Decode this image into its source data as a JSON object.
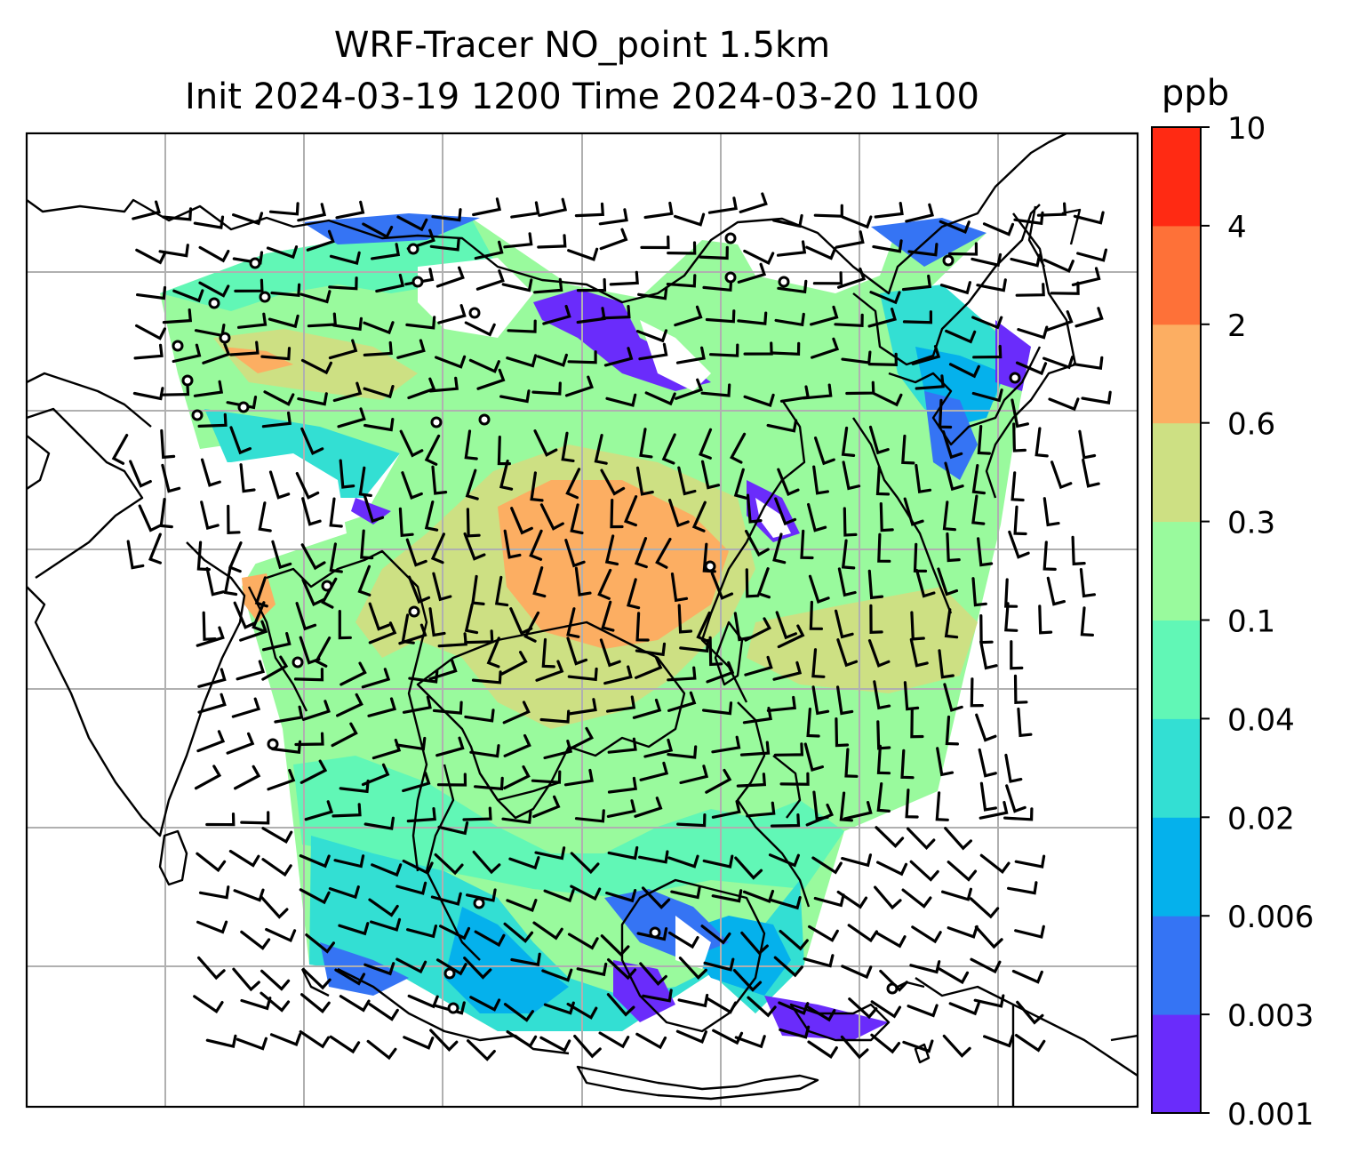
{
  "title": {
    "line1": "WRF-Tracer NO_point 1.5km",
    "line2": "Init 2024-03-19 1200 Time 2024-03-20 1100"
  },
  "colorbar": {
    "unit": "ppb",
    "levels": [
      "0.001",
      "0.003",
      "0.006",
      "0.02",
      "0.04",
      "0.1",
      "0.3",
      "0.6",
      "2",
      "4",
      "10"
    ],
    "colors": [
      "#6a2cfb",
      "#3574f4",
      "#05b1ec",
      "#33dfd3",
      "#61f7b6",
      "#99fa9d",
      "#cde083",
      "#fcae62",
      "#fe7138",
      "#ff2a13"
    ]
  },
  "map": {
    "domain_fill_color": "#99fa9d",
    "plume_colors": [
      "#fcae62",
      "#cde083",
      "#61f7b6",
      "#33dfd3",
      "#05b1ec",
      "#3574f4",
      "#6a2cfb"
    ],
    "grid": "on",
    "overlays": [
      "coastlines",
      "country-borders",
      "wind-barbs",
      "point-sources"
    ]
  }
}
